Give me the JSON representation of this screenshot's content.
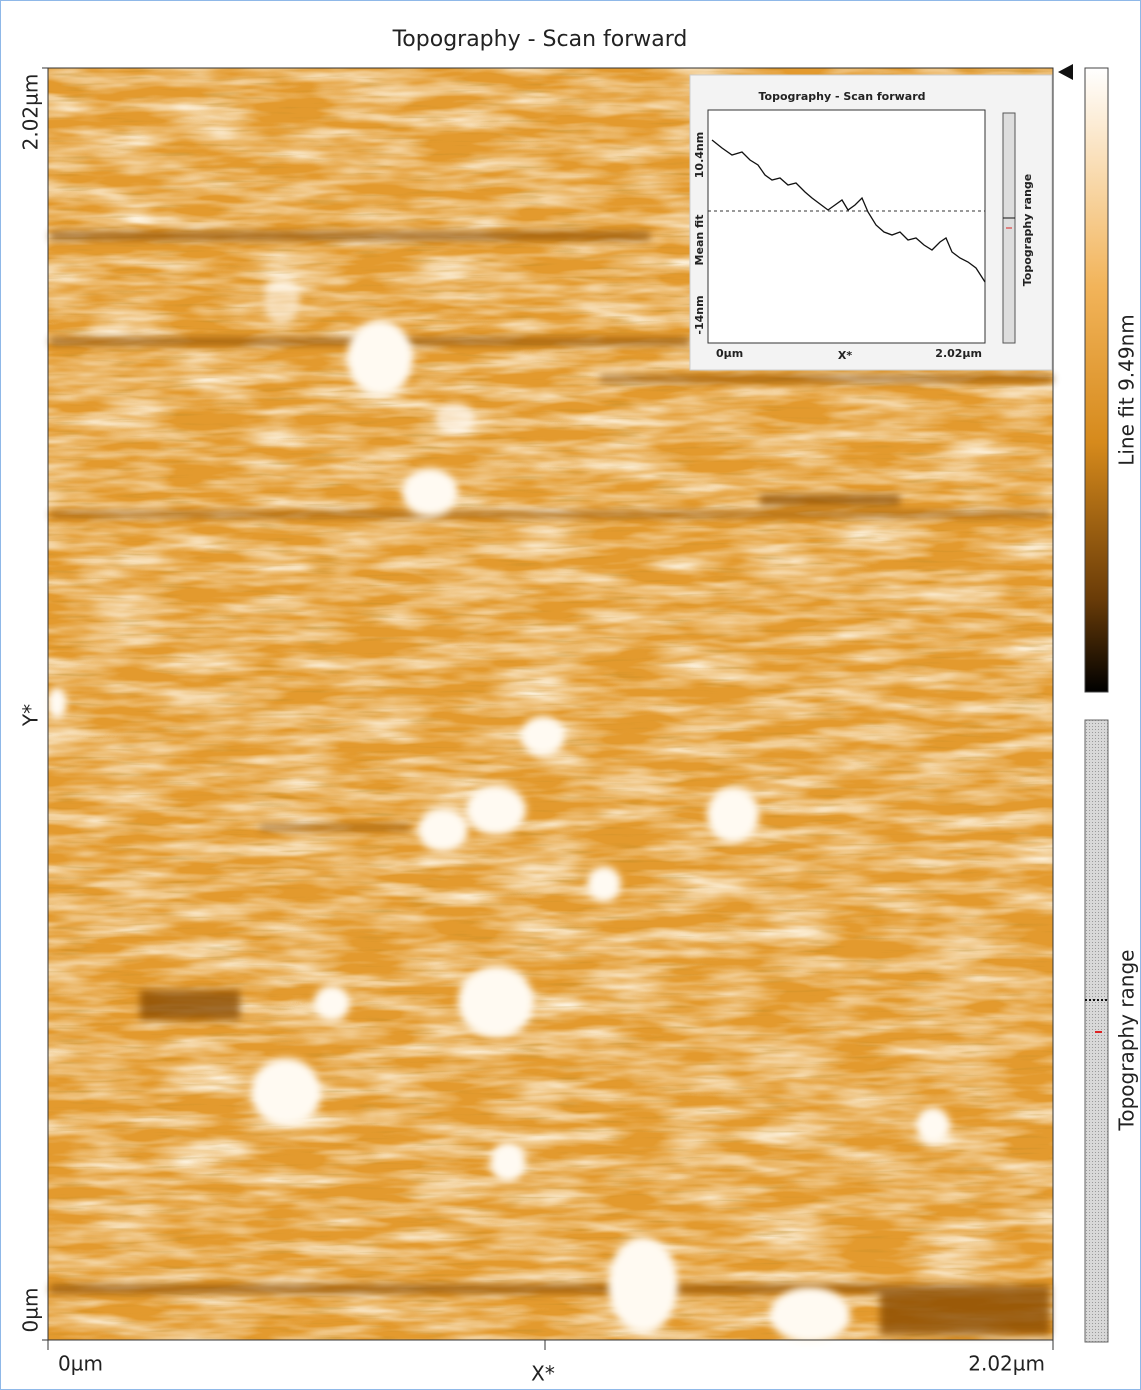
{
  "image": {
    "title": "Topography - Scan forward",
    "y_axis": {
      "label": "Y*",
      "max": "2.02µm",
      "min": "0µm"
    },
    "x_axis": {
      "label": "X*",
      "min": "0µm",
      "max": "2.02µm"
    }
  },
  "colorbar": {
    "label": "Line fit 9.49nm"
  },
  "range_bar": {
    "label": "Topography range"
  },
  "inset": {
    "title": "Topography - Scan forward",
    "y_max": "10.4nm",
    "y_mid": "Mean fit",
    "y_min": "-14nm",
    "x_min": "0µm",
    "x_label": "X*",
    "x_max": "2.02µm",
    "bar_label": "Topography range"
  }
}
